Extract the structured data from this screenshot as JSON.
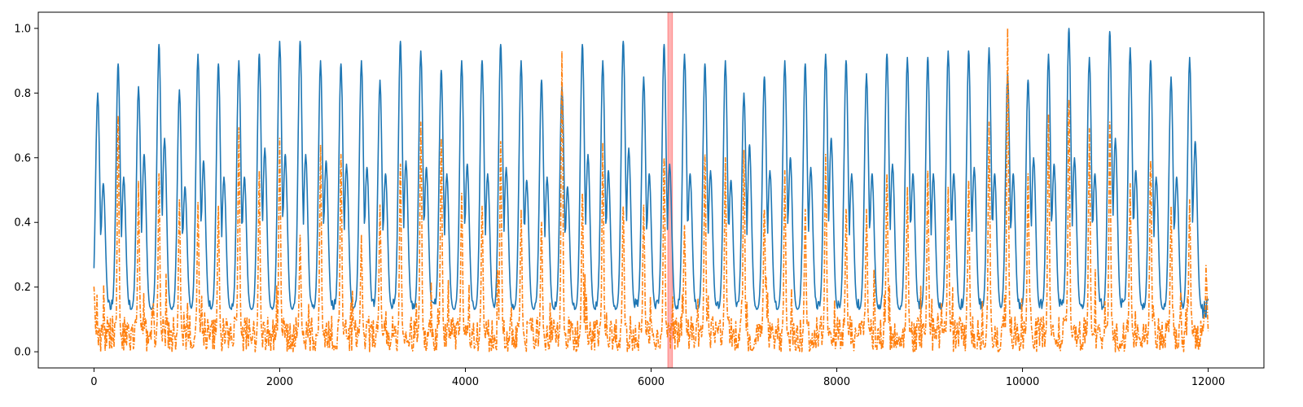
{
  "chart_data": {
    "type": "line",
    "title": "",
    "xlabel": "",
    "ylabel": "",
    "xlim": [
      -600,
      12600
    ],
    "ylim": [
      -0.05,
      1.05
    ],
    "x_ticks": [
      0,
      2000,
      4000,
      6000,
      8000,
      10000,
      12000
    ],
    "x_tick_labels": [
      "0",
      "2000",
      "4000",
      "6000",
      "8000",
      "10000",
      "12000"
    ],
    "y_ticks": [
      0.0,
      0.2,
      0.4,
      0.6,
      0.8,
      1.0
    ],
    "y_tick_labels": [
      "0.0",
      "0.2",
      "0.4",
      "0.6",
      "0.8",
      "1.0"
    ],
    "grid": false,
    "legend": "none",
    "highlight_span": {
      "x_start": 6180,
      "x_end": 6230,
      "color": "#ff0000",
      "alpha": 0.3
    },
    "x_range": [
      0,
      12000
    ],
    "series": [
      {
        "style": "solid",
        "color": "#1f77b4",
        "baseline": 0.13,
        "peaks": [
          {
            "x": 40,
            "y": 0.8
          },
          {
            "x": 100,
            "y": 0.52
          },
          {
            "x": 260,
            "y": 0.89
          },
          {
            "x": 320,
            "y": 0.54
          },
          {
            "x": 480,
            "y": 0.82
          },
          {
            "x": 540,
            "y": 0.61
          },
          {
            "x": 700,
            "y": 0.95
          },
          {
            "x": 760,
            "y": 0.66
          },
          {
            "x": 920,
            "y": 0.81
          },
          {
            "x": 980,
            "y": 0.51
          },
          {
            "x": 1120,
            "y": 0.92
          },
          {
            "x": 1180,
            "y": 0.59
          },
          {
            "x": 1340,
            "y": 0.89
          },
          {
            "x": 1400,
            "y": 0.54
          },
          {
            "x": 1560,
            "y": 0.9
          },
          {
            "x": 1620,
            "y": 0.54
          },
          {
            "x": 1780,
            "y": 0.92
          },
          {
            "x": 1840,
            "y": 0.63
          },
          {
            "x": 2000,
            "y": 0.96
          },
          {
            "x": 2060,
            "y": 0.61
          },
          {
            "x": 2220,
            "y": 0.96
          },
          {
            "x": 2280,
            "y": 0.61
          },
          {
            "x": 2440,
            "y": 0.9
          },
          {
            "x": 2500,
            "y": 0.59
          },
          {
            "x": 2660,
            "y": 0.89
          },
          {
            "x": 2720,
            "y": 0.58
          },
          {
            "x": 2880,
            "y": 0.9
          },
          {
            "x": 2940,
            "y": 0.57
          },
          {
            "x": 3080,
            "y": 0.84
          },
          {
            "x": 3140,
            "y": 0.55
          },
          {
            "x": 3300,
            "y": 0.96
          },
          {
            "x": 3360,
            "y": 0.59
          },
          {
            "x": 3520,
            "y": 0.93
          },
          {
            "x": 3580,
            "y": 0.57
          },
          {
            "x": 3740,
            "y": 0.87
          },
          {
            "x": 3800,
            "y": 0.55
          },
          {
            "x": 3960,
            "y": 0.9
          },
          {
            "x": 4020,
            "y": 0.58
          },
          {
            "x": 4180,
            "y": 0.9
          },
          {
            "x": 4240,
            "y": 0.55
          },
          {
            "x": 4380,
            "y": 0.95
          },
          {
            "x": 4440,
            "y": 0.57
          },
          {
            "x": 4600,
            "y": 0.9
          },
          {
            "x": 4660,
            "y": 0.53
          },
          {
            "x": 4820,
            "y": 0.84
          },
          {
            "x": 4880,
            "y": 0.54
          },
          {
            "x": 5040,
            "y": 0.82
          },
          {
            "x": 5100,
            "y": 0.51
          },
          {
            "x": 5260,
            "y": 0.95
          },
          {
            "x": 5320,
            "y": 0.61
          },
          {
            "x": 5480,
            "y": 0.9
          },
          {
            "x": 5540,
            "y": 0.56
          },
          {
            "x": 5700,
            "y": 0.96
          },
          {
            "x": 5760,
            "y": 0.63
          },
          {
            "x": 5920,
            "y": 0.85
          },
          {
            "x": 5980,
            "y": 0.55
          },
          {
            "x": 6140,
            "y": 0.95
          },
          {
            "x": 6200,
            "y": 0.58
          },
          {
            "x": 6360,
            "y": 0.92
          },
          {
            "x": 6420,
            "y": 0.55
          },
          {
            "x": 6580,
            "y": 0.89
          },
          {
            "x": 6640,
            "y": 0.56
          },
          {
            "x": 6800,
            "y": 0.9
          },
          {
            "x": 6860,
            "y": 0.53
          },
          {
            "x": 7000,
            "y": 0.8
          },
          {
            "x": 7060,
            "y": 0.64
          },
          {
            "x": 7220,
            "y": 0.85
          },
          {
            "x": 7280,
            "y": 0.56
          },
          {
            "x": 7440,
            "y": 0.9
          },
          {
            "x": 7500,
            "y": 0.6
          },
          {
            "x": 7660,
            "y": 0.89
          },
          {
            "x": 7720,
            "y": 0.57
          },
          {
            "x": 7880,
            "y": 0.92
          },
          {
            "x": 7940,
            "y": 0.66
          },
          {
            "x": 8100,
            "y": 0.9
          },
          {
            "x": 8160,
            "y": 0.55
          },
          {
            "x": 8320,
            "y": 0.86
          },
          {
            "x": 8380,
            "y": 0.55
          },
          {
            "x": 8540,
            "y": 0.92
          },
          {
            "x": 8600,
            "y": 0.58
          },
          {
            "x": 8760,
            "y": 0.91
          },
          {
            "x": 8820,
            "y": 0.55
          },
          {
            "x": 8980,
            "y": 0.91
          },
          {
            "x": 9040,
            "y": 0.55
          },
          {
            "x": 9200,
            "y": 0.93
          },
          {
            "x": 9260,
            "y": 0.55
          },
          {
            "x": 9420,
            "y": 0.93
          },
          {
            "x": 9480,
            "y": 0.57
          },
          {
            "x": 9640,
            "y": 0.94
          },
          {
            "x": 9700,
            "y": 0.55
          },
          {
            "x": 9840,
            "y": 0.86
          },
          {
            "x": 9900,
            "y": 0.55
          },
          {
            "x": 10060,
            "y": 0.84
          },
          {
            "x": 10120,
            "y": 0.6
          },
          {
            "x": 10280,
            "y": 0.92
          },
          {
            "x": 10340,
            "y": 0.58
          },
          {
            "x": 10500,
            "y": 1.0
          },
          {
            "x": 10560,
            "y": 0.6
          },
          {
            "x": 10720,
            "y": 0.91
          },
          {
            "x": 10780,
            "y": 0.55
          },
          {
            "x": 10940,
            "y": 0.99
          },
          {
            "x": 11000,
            "y": 0.66
          },
          {
            "x": 11160,
            "y": 0.94
          },
          {
            "x": 11220,
            "y": 0.56
          },
          {
            "x": 11380,
            "y": 0.9
          },
          {
            "x": 11440,
            "y": 0.54
          },
          {
            "x": 11600,
            "y": 0.85
          },
          {
            "x": 11660,
            "y": 0.54
          },
          {
            "x": 11800,
            "y": 0.91
          },
          {
            "x": 11860,
            "y": 0.65
          }
        ]
      },
      {
        "style": "dashdot",
        "color": "#ff7f0e",
        "baseline": 0.05,
        "peaks": [
          {
            "x": 0,
            "y": 0.2
          },
          {
            "x": 260,
            "y": 0.73
          },
          {
            "x": 480,
            "y": 0.51
          },
          {
            "x": 700,
            "y": 0.55
          },
          {
            "x": 920,
            "y": 0.47
          },
          {
            "x": 1120,
            "y": 0.46
          },
          {
            "x": 1340,
            "y": 0.45
          },
          {
            "x": 1560,
            "y": 0.68
          },
          {
            "x": 1780,
            "y": 0.56
          },
          {
            "x": 2000,
            "y": 0.66
          },
          {
            "x": 2220,
            "y": 0.36
          },
          {
            "x": 2440,
            "y": 0.64
          },
          {
            "x": 2660,
            "y": 0.61
          },
          {
            "x": 2880,
            "y": 0.34
          },
          {
            "x": 3080,
            "y": 0.45
          },
          {
            "x": 3300,
            "y": 0.58
          },
          {
            "x": 3520,
            "y": 0.71
          },
          {
            "x": 3740,
            "y": 0.66
          },
          {
            "x": 3960,
            "y": 0.49
          },
          {
            "x": 4180,
            "y": 0.45
          },
          {
            "x": 4380,
            "y": 0.65
          },
          {
            "x": 4600,
            "y": 0.44
          },
          {
            "x": 4820,
            "y": 0.4
          },
          {
            "x": 5040,
            "y": 0.92
          },
          {
            "x": 5260,
            "y": 0.49
          },
          {
            "x": 5480,
            "y": 0.63
          },
          {
            "x": 5700,
            "y": 0.45
          },
          {
            "x": 5920,
            "y": 0.44
          },
          {
            "x": 6140,
            "y": 0.6
          },
          {
            "x": 6360,
            "y": 0.39
          },
          {
            "x": 6580,
            "y": 0.61
          },
          {
            "x": 6800,
            "y": 0.6
          },
          {
            "x": 7000,
            "y": 0.61
          },
          {
            "x": 7220,
            "y": 0.44
          },
          {
            "x": 7440,
            "y": 0.56
          },
          {
            "x": 7660,
            "y": 0.44
          },
          {
            "x": 7880,
            "y": 0.61
          },
          {
            "x": 8100,
            "y": 0.44
          },
          {
            "x": 8320,
            "y": 0.44
          },
          {
            "x": 8540,
            "y": 0.55
          },
          {
            "x": 8760,
            "y": 0.51
          },
          {
            "x": 8980,
            "y": 0.56
          },
          {
            "x": 9200,
            "y": 0.51
          },
          {
            "x": 9420,
            "y": 0.53
          },
          {
            "x": 9640,
            "y": 0.71
          },
          {
            "x": 9840,
            "y": 1.0
          },
          {
            "x": 10060,
            "y": 0.55
          },
          {
            "x": 10280,
            "y": 0.73
          },
          {
            "x": 10500,
            "y": 0.78
          },
          {
            "x": 10720,
            "y": 0.69
          },
          {
            "x": 10940,
            "y": 0.71
          },
          {
            "x": 11160,
            "y": 0.51
          },
          {
            "x": 11380,
            "y": 0.59
          },
          {
            "x": 11600,
            "y": 0.45
          },
          {
            "x": 11800,
            "y": 0.47
          },
          {
            "x": 11980,
            "y": 0.23
          }
        ]
      }
    ]
  }
}
